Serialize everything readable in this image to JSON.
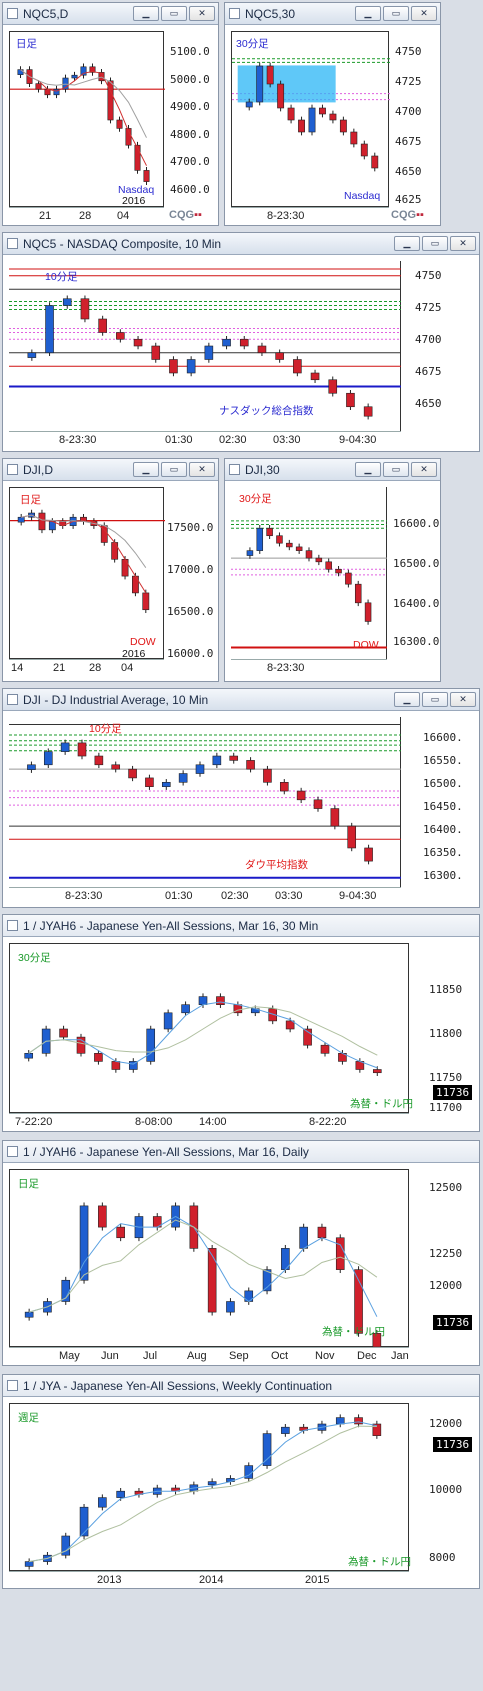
{
  "colors": {
    "up": "#1f5fd0",
    "down": "#d0202c",
    "nasdaq": "#1a1ac8",
    "dow": "#e01818",
    "fx": "#1a9a2a",
    "mon": "#2a2ad0"
  },
  "buttons": {
    "min": "▁",
    "restore": "▭",
    "close": "✕"
  },
  "brand": {
    "cqg_a": "CQG",
    "cqg_b": "▪▪"
  },
  "panes": {
    "nqc_d": {
      "title": "NQC5,D",
      "tag": "日足",
      "name": "Nasdaq",
      "year": "2016",
      "ylabels": [
        "5100.0",
        "5000.0",
        "4900.0",
        "4800.0",
        "4700.0",
        "4600.0"
      ],
      "xlabels": [
        "21",
        "28",
        "04"
      ]
    },
    "nqc_30": {
      "title": "NQC5,30",
      "tag": "30分足",
      "name": "Nasdaq",
      "ylabels": [
        "4750",
        "4725",
        "4700",
        "4675",
        "4650",
        "4625"
      ],
      "xlabels": [
        "8-23:30"
      ]
    },
    "nqc_10": {
      "title": "NQC5 - NASDAQ Composite, 10 Min",
      "tag": "10分足",
      "name": "ナスダック総合指数",
      "ylabels": [
        "4750",
        "4725",
        "4700",
        "4675",
        "4650"
      ],
      "xlabels": [
        "8-23:30",
        "01:30",
        "02:30",
        "03:30",
        "9-04:30"
      ]
    },
    "dji_d": {
      "title": "DJI,D",
      "tag": "日足",
      "name": "DOW",
      "year": "2016",
      "ylabels": [
        "17500.0",
        "17000.0",
        "16500.0",
        "16000.0"
      ],
      "xlabels": [
        "14",
        "21",
        "28",
        "04"
      ]
    },
    "dji_30": {
      "title": "DJI,30",
      "tag": "30分足",
      "name": "DOW",
      "ylabels": [
        "16600.0",
        "16500.0",
        "16400.0",
        "16300.0"
      ],
      "xlabels": [
        "8-23:30"
      ]
    },
    "dji_10": {
      "title": "DJI - DJ Industrial Average, 10 Min",
      "tag": "10分足",
      "name": "ダウ平均指数",
      "ylabels": [
        "16600.",
        "16550.",
        "16500.",
        "16450.",
        "16400.",
        "16350.",
        "16300."
      ],
      "xlabels": [
        "8-23:30",
        "01:30",
        "02:30",
        "03:30",
        "9-04:30"
      ]
    },
    "jy_30": {
      "title": "1 / JYAH6 - Japanese Yen-All Sessions, Mar 16, 30 Min",
      "tag": "30分足",
      "name": "為替・ドル円",
      "last": "11736",
      "ylabels": [
        "11850",
        "11800",
        "11750",
        "11700"
      ],
      "xlabels": [
        "7-22:20",
        "8-08:00",
        "14:00",
        "8-22:20"
      ]
    },
    "jy_d": {
      "title": "1 / JYAH6 - Japanese Yen-All Sessions, Mar 16, Daily",
      "tag": "日足",
      "name": "為替・ドル円",
      "last": "11736",
      "ylabels": [
        "12500",
        "12250",
        "12000"
      ],
      "xlabels": [
        "May",
        "Jun",
        "Jul",
        "Aug",
        "Sep",
        "Oct",
        "Nov",
        "Dec",
        "Jan"
      ]
    },
    "jy_w": {
      "title": "1 / JYA - Japanese Yen-All Sessions, Weekly Continuation",
      "tag": "週足",
      "name": "為替・ドル円",
      "last": "11736",
      "ylabels": [
        "12000",
        "10000",
        "8000"
      ],
      "xlabels": [
        "2013",
        "2014",
        "2015"
      ]
    }
  },
  "chart_data": [
    {
      "type": "candlestick",
      "title": "NQC5,D",
      "ylim": [
        4580,
        5180
      ],
      "series": [
        {
          "name": "Nasdaq",
          "values": [
            5060,
            5010,
            4990,
            4970,
            4990,
            5030,
            5040,
            5070,
            5050,
            5020,
            4880,
            4850,
            4790,
            4700,
            4660
          ]
        }
      ]
    },
    {
      "type": "candlestick",
      "title": "NQC5,30",
      "ylim": [
        4620,
        4760
      ],
      "series": [
        {
          "name": "Nasdaq",
          "values": [
            4705,
            4735,
            4720,
            4700,
            4690,
            4680,
            4700,
            4695,
            4690,
            4680,
            4670,
            4660,
            4650
          ]
        }
      ]
    },
    {
      "type": "candlestick",
      "title": "NQC5 - NASDAQ Composite, 10 Min",
      "ylim": [
        4640,
        4760
      ],
      "series": [
        {
          "name": "ナスダック総合指数",
          "values": [
            4695,
            4730,
            4735,
            4720,
            4710,
            4705,
            4700,
            4690,
            4680,
            4690,
            4700,
            4705,
            4700,
            4695,
            4690,
            4680,
            4675,
            4665,
            4655,
            4648
          ]
        }
      ]
    },
    {
      "type": "candlestick",
      "title": "DJI,D",
      "ylim": [
        15950,
        17900
      ],
      "series": [
        {
          "name": "DOW",
          "values": [
            17600,
            17650,
            17450,
            17550,
            17500,
            17600,
            17550,
            17500,
            17300,
            17100,
            16900,
            16700,
            16500
          ]
        }
      ]
    },
    {
      "type": "candlestick",
      "title": "DJI,30",
      "ylim": [
        16240,
        16680
      ],
      "series": [
        {
          "name": "DOW",
          "values": [
            16520,
            16580,
            16560,
            16540,
            16530,
            16520,
            16500,
            16490,
            16470,
            16460,
            16430,
            16380,
            16330
          ]
        }
      ]
    },
    {
      "type": "candlestick",
      "title": "DJI - DJ Industrial Average, 10 Min",
      "ylim": [
        16270,
        16640
      ],
      "series": [
        {
          "name": "ダウ平均指数",
          "values": [
            16540,
            16570,
            16590,
            16560,
            16540,
            16530,
            16510,
            16490,
            16500,
            16520,
            16540,
            16560,
            16550,
            16530,
            16500,
            16480,
            16460,
            16440,
            16400,
            16350,
            16320
          ]
        }
      ]
    },
    {
      "type": "candlestick",
      "title": "1 / JYAH6 - Japanese Yen-All Sessions, Mar 16, 30 Min",
      "ylim": [
        11690,
        11890
      ],
      "series": [
        {
          "name": "為替・ドル円",
          "values": [
            11760,
            11790,
            11780,
            11760,
            11750,
            11740,
            11750,
            11790,
            11810,
            11820,
            11830,
            11820,
            11810,
            11815,
            11800,
            11790,
            11770,
            11760,
            11750,
            11740,
            11736
          ]
        }
      ]
    },
    {
      "type": "candlestick",
      "title": "1 / JYAH6 - Japanese Yen-All Sessions, Mar 16, Daily",
      "ylim": [
        11750,
        12550
      ],
      "series": [
        {
          "name": "為替・ドル円",
          "values": [
            11900,
            11950,
            12050,
            12400,
            12300,
            12250,
            12350,
            12300,
            12400,
            12200,
            11900,
            11950,
            12000,
            12100,
            12200,
            12300,
            12250,
            12100,
            11800,
            11736
          ]
        }
      ]
    },
    {
      "type": "candlestick",
      "title": "1 / JYA - Japanese Yen-All Sessions, Weekly Continuation",
      "ylim": [
        7600,
        12600
      ],
      "series": [
        {
          "name": "為替・ドル円",
          "values": [
            7800,
            8000,
            8600,
            9500,
            9800,
            10000,
            9900,
            10100,
            10000,
            10200,
            10300,
            10400,
            10800,
            11800,
            12000,
            11900,
            12100,
            12300,
            12100,
            11736
          ]
        }
      ]
    }
  ]
}
